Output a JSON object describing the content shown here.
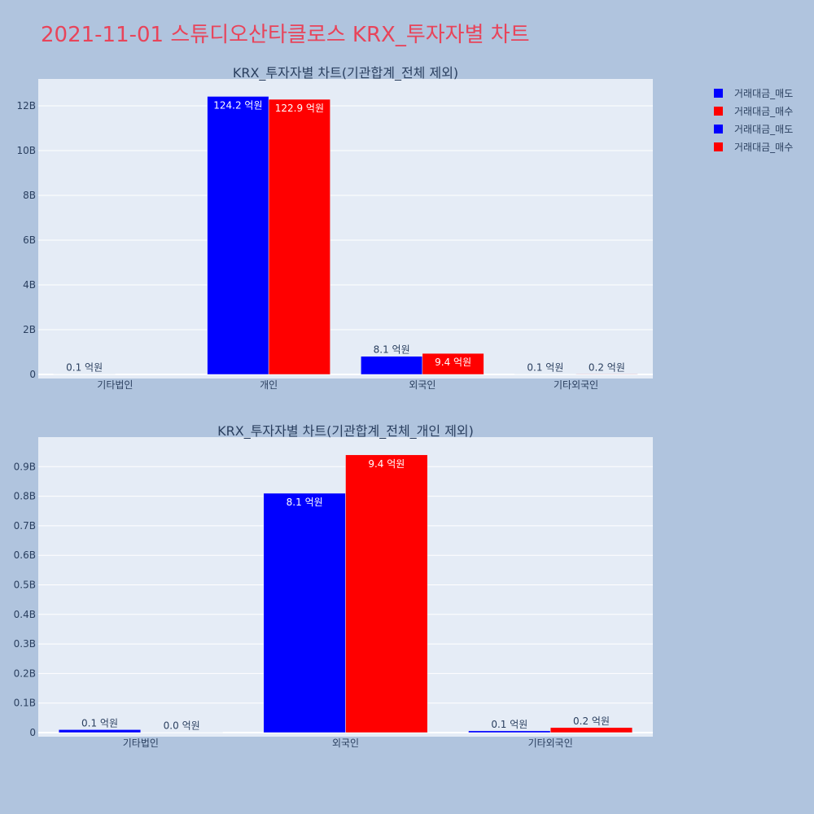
{
  "page": {
    "title": "2021-11-01 스튜디오산타클로스 KRX_투자자별 차트"
  },
  "legend": [
    {
      "label": "거래대금_매도",
      "color": "#0000ff"
    },
    {
      "label": "거래대금_매수",
      "color": "#ff0000"
    },
    {
      "label": "거래대금_매도",
      "color": "#0000ff"
    },
    {
      "label": "거래대금_매수",
      "color": "#ff0000"
    }
  ],
  "chart_data": [
    {
      "type": "bar",
      "title": "KRX_투자자별 차트(기관합계_전체 제외)",
      "categories": [
        "기타법인",
        "개인",
        "외국인",
        "기타외국인"
      ],
      "ylim": [
        0,
        13200000000
      ],
      "yticks": [
        0,
        2000000000,
        4000000000,
        6000000000,
        8000000000,
        10000000000,
        12000000000
      ],
      "ytick_labels": [
        "0",
        "2B",
        "4B",
        "6B",
        "8B",
        "10B",
        "12B"
      ],
      "series": [
        {
          "name": "거래대금_매도",
          "color": "#0000ff",
          "values": [
            10000000,
            12420000000,
            810000000,
            10000000
          ],
          "labels": [
            "0.1 억원",
            "124.2 억원",
            "8.1 억원",
            "0.1 억원"
          ]
        },
        {
          "name": "거래대금_매수",
          "color": "#ff0000",
          "values": [
            0,
            12290000000,
            940000000,
            20000000
          ],
          "labels": [
            "",
            "122.9 억원",
            "9.4 억원",
            "0.2 억원"
          ]
        }
      ]
    },
    {
      "type": "bar",
      "title": "KRX_투자자별 차트(기관합계_전체_개인 제외)",
      "categories": [
        "기타법인",
        "외국인",
        "기타외국인"
      ],
      "ylim": [
        0,
        1000000000
      ],
      "yticks": [
        0,
        100000000,
        200000000,
        300000000,
        400000000,
        500000000,
        600000000,
        700000000,
        800000000,
        900000000
      ],
      "ytick_labels": [
        "0",
        "0.1B",
        "0.2B",
        "0.3B",
        "0.4B",
        "0.5B",
        "0.6B",
        "0.7B",
        "0.8B",
        "0.9B"
      ],
      "series": [
        {
          "name": "거래대금_매도",
          "color": "#0000ff",
          "values": [
            10000000,
            810000000,
            6000000
          ],
          "labels": [
            "0.1 억원",
            "8.1 억원",
            "0.1 억원"
          ]
        },
        {
          "name": "거래대금_매수",
          "color": "#ff0000",
          "values": [
            1000000,
            940000000,
            17000000
          ],
          "labels": [
            "0.0 억원",
            "9.4 억원",
            "0.2 억원"
          ]
        }
      ]
    }
  ]
}
